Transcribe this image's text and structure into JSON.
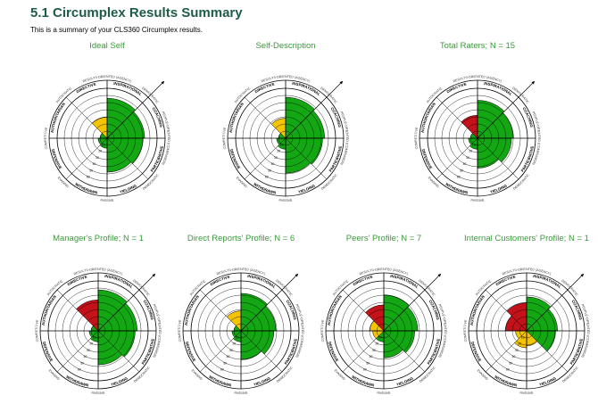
{
  "header": {
    "title": "5.1 Circumplex Results Summary",
    "subtitle": "This is a summary of your CLS360 Circumplex results."
  },
  "colors": {
    "title": "#1f5c45",
    "chart_title": "#3a9a3a",
    "green": "#13a813",
    "yellow": "#f5c400",
    "red": "#c3121a"
  },
  "octant_labels": [
    "INSPIRATIONAL",
    "COACHING",
    "PARTICIPATIVE",
    "YIELDING",
    "WITHDRAWN",
    "DEFENSIVE",
    "AUTHORITARIAN",
    "DIRECTIVE"
  ],
  "outer_labels": [
    "RESULTS-ORIENTED (AGENCY)",
    "DEMOCRATIC",
    "PEOPLE-ORIENTED (COMMUNION)",
    "DEMOCRATIC",
    "PASSIVE",
    "EVADING",
    "COMPETITIVE",
    "AUTOCRATIC"
  ],
  "ring_labels": [
    "10",
    "20",
    "30",
    "40",
    "50",
    "60"
  ],
  "chart_data": [
    {
      "type": "radial-bar",
      "title": "Ideal Self",
      "scale": [
        0,
        100
      ],
      "values": [
        80,
        75,
        72,
        68,
        20,
        18,
        14,
        42
      ],
      "fill_colors": [
        "green",
        "green",
        "green",
        "green",
        "green",
        "green",
        "green",
        "yellow"
      ],
      "arrow_angle_deg": 45
    },
    {
      "type": "radial-bar",
      "title": "Self-Description",
      "scale": [
        0,
        100
      ],
      "values": [
        82,
        78,
        74,
        70,
        22,
        18,
        14,
        40
      ],
      "fill_colors": [
        "green",
        "green",
        "green",
        "green",
        "green",
        "green",
        "green",
        "yellow"
      ],
      "arrow_angle_deg": 45
    },
    {
      "type": "radial-bar",
      "title": "Total Raters; N = 15",
      "scale": [
        0,
        100
      ],
      "values": [
        76,
        72,
        68,
        60,
        22,
        18,
        14,
        46
      ],
      "fill_colors": [
        "green",
        "green",
        "green",
        "green",
        "green",
        "green",
        "green",
        "red"
      ],
      "arrow_angle_deg": 45
    },
    {
      "type": "radial-bar",
      "title": "Manager's Profile; N = 1",
      "scale": [
        0,
        100
      ],
      "values": [
        82,
        78,
        74,
        68,
        22,
        18,
        14,
        62
      ],
      "fill_colors": [
        "green",
        "green",
        "green",
        "green",
        "green",
        "green",
        "green",
        "red"
      ],
      "arrow_angle_deg": 45
    },
    {
      "type": "radial-bar",
      "title": "Direct Reports' Profile; N = 6",
      "scale": [
        0,
        100
      ],
      "values": [
        75,
        70,
        66,
        58,
        22,
        18,
        14,
        40
      ],
      "fill_colors": [
        "green",
        "green",
        "green",
        "green",
        "green",
        "green",
        "green",
        "yellow"
      ],
      "arrow_angle_deg": 45
    },
    {
      "type": "radial-bar",
      "title": "Peers' Profile; N = 7",
      "scale": [
        0,
        100
      ],
      "values": [
        72,
        68,
        62,
        54,
        22,
        22,
        28,
        52
      ],
      "fill_colors": [
        "green",
        "green",
        "green",
        "green",
        "green",
        "yellow",
        "yellow",
        "red"
      ],
      "arrow_angle_deg": 45
    },
    {
      "type": "radial-bar",
      "title": "Internal Customers' Profile; N = 1",
      "scale": [
        0,
        100
      ],
      "values": [
        68,
        62,
        58,
        30,
        34,
        22,
        42,
        56
      ],
      "fill_colors": [
        "green",
        "green",
        "green",
        "yellow",
        "yellow",
        "yellow",
        "red",
        "red"
      ],
      "arrow_angle_deg": 45
    }
  ]
}
